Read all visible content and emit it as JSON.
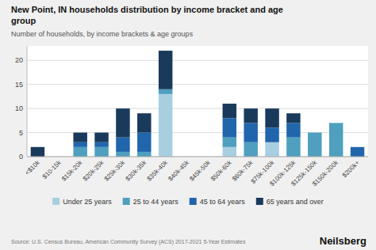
{
  "chart_data": {
    "type": "bar",
    "title": "New Point, IN households distribution by income bracket and age\ngroup",
    "subtitle": "Number of households, by income brackets & age groups",
    "annotations": [
      "Source: U.S. Census Bureau, American Community Survey (ACS) 2017-2021 5-Year Estimates",
      "Neilsberg"
    ],
    "categories": [
      "<$10k",
      "$10-15k",
      "$15k-20k",
      "$20k-25k",
      "$25k-30k",
      "$30k-35k",
      "$35k-40k",
      "$40k-45k",
      "$45k-50k",
      "$50k-60k",
      "$60k-75k",
      "$75k-100k",
      "$100k-125k",
      "$125k-150k",
      "$150k-200k",
      "$200k+"
    ],
    "series": [
      {
        "name": "Under 25 years",
        "color": "#a8cfe0",
        "values": [
          0,
          0,
          0,
          0,
          0,
          0,
          13,
          0,
          0,
          2,
          0,
          3,
          0,
          0,
          0,
          0
        ]
      },
      {
        "name": "25 to 44 years",
        "color": "#4f9fbf",
        "values": [
          0,
          0,
          2,
          2,
          1,
          1,
          1,
          0,
          0,
          2,
          3,
          0,
          4,
          5,
          7,
          0
        ]
      },
      {
        "name": "45 to 64 years",
        "color": "#2166ac",
        "values": [
          0,
          0,
          1,
          1,
          3,
          4,
          0,
          0,
          0,
          4,
          4,
          3,
          3,
          0,
          0,
          2
        ]
      },
      {
        "name": "65 years and over",
        "color": "#1a3a5c",
        "values": [
          2,
          0,
          2,
          2,
          6,
          4,
          8,
          0,
          0,
          3,
          3,
          4,
          2,
          0,
          0,
          0
        ]
      }
    ],
    "stacked": true,
    "ylim": [
      0,
      23
    ],
    "yticks": [
      0,
      5,
      10,
      15,
      20
    ],
    "grid": true,
    "legend": "bottom"
  }
}
